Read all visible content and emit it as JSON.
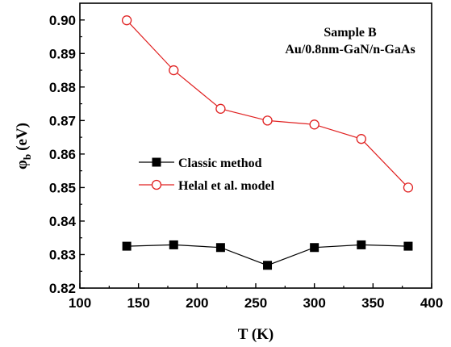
{
  "chart_data": {
    "type": "line",
    "xlabel": "T (K)",
    "ylabel_main": "φ",
    "ylabel_sub": "b",
    "ylabel_unit": "(eV)",
    "xlim": [
      100,
      400
    ],
    "ylim": [
      0.82,
      0.905
    ],
    "x_ticks": [
      "100",
      "150",
      "200",
      "250",
      "300",
      "350",
      "400"
    ],
    "y_ticks": [
      "0.82",
      "0.83",
      "0.84",
      "0.85",
      "0.86",
      "0.87",
      "0.88",
      "0.89",
      "0.90"
    ],
    "annotations": [
      "Sample B",
      "Au/0.8nm-GaN/n-GaAs"
    ],
    "grid": false,
    "legend_position": "center-left",
    "series": [
      {
        "name": "Classic method",
        "color": "#000000",
        "marker": "filled-square",
        "x": [
          140,
          180,
          220,
          260,
          300,
          340,
          380
        ],
        "y": [
          0.8325,
          0.8329,
          0.8321,
          0.8268,
          0.8321,
          0.8329,
          0.8325
        ]
      },
      {
        "name": "Helal et al. model",
        "color": "#e02020",
        "marker": "open-circle",
        "x": [
          140,
          180,
          220,
          260,
          300,
          340,
          380
        ],
        "y": [
          0.8999,
          0.885,
          0.8735,
          0.87,
          0.8688,
          0.8645,
          0.85
        ]
      }
    ]
  }
}
